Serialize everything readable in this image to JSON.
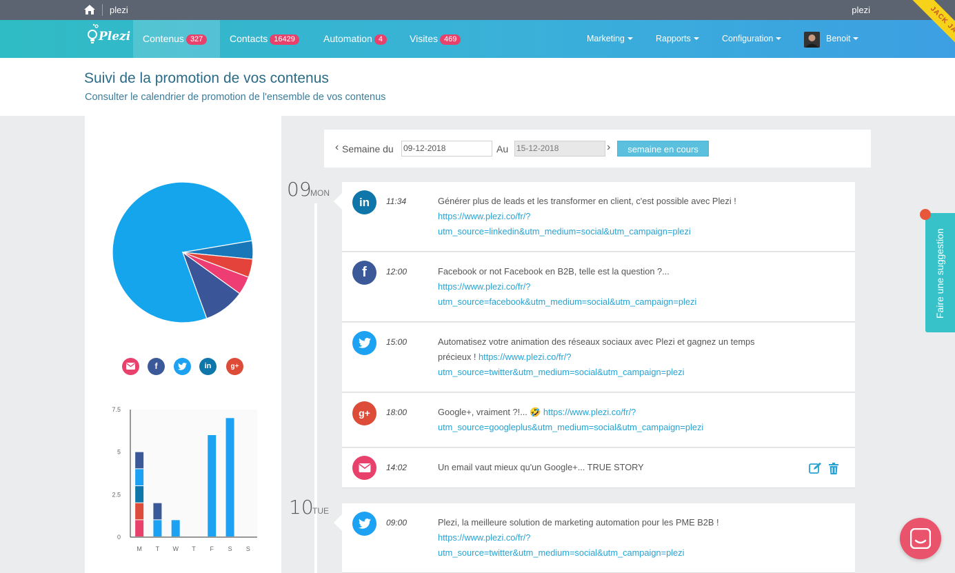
{
  "topbar": {
    "org": "plezi",
    "user": "plezi"
  },
  "navbar": {
    "logo": "Plezi",
    "items": [
      {
        "label": "Contenus",
        "badge": "327"
      },
      {
        "label": "Contacts",
        "badge": "16429"
      },
      {
        "label": "Automation",
        "badge": "4"
      },
      {
        "label": "Visites",
        "badge": "469"
      }
    ],
    "right": [
      "Marketing",
      "Rapports",
      "Configuration"
    ],
    "user": "Benoit",
    "ribbon": "JACK JACK"
  },
  "header": {
    "title": "Suivi de la promotion de vos contenus",
    "subtitle": "Consulter le calendrier de promotion de l'ensemble de vos contenus"
  },
  "colors": {
    "email": "#e8416b",
    "facebook": "#3b5998",
    "twitter": "#1da1f2",
    "linkedin": "#0e76a8",
    "googleplus": "#dd4b39",
    "pie_blue": "#14a5ec",
    "pie_dark": "#3b5599",
    "pie_mid": "#1877b8",
    "pie_red": "#e3433a",
    "pie_pink": "#ee3d72"
  },
  "social_legend": [
    "email-icon",
    "facebook-icon",
    "twitter-icon",
    "linkedin-icon",
    "googleplus-icon"
  ],
  "chart_data": [
    {
      "type": "pie",
      "title": "",
      "slices": [
        {
          "name": "twitter",
          "value": 74
        },
        {
          "name": "linkedin",
          "value": 4
        },
        {
          "name": "googleplus",
          "value": 4
        },
        {
          "name": "email",
          "value": 4
        },
        {
          "name": "facebook",
          "value": 9
        }
      ]
    },
    {
      "type": "bar",
      "stacked": true,
      "categories": [
        "M",
        "T",
        "W",
        "T",
        "F",
        "S",
        "S"
      ],
      "yticks": [
        "0",
        "2.5",
        "5",
        "7.5"
      ],
      "ylim": [
        0,
        7.5
      ],
      "series": [
        {
          "name": "email",
          "values": [
            1,
            0,
            0,
            0,
            0,
            0,
            0
          ]
        },
        {
          "name": "googleplus",
          "values": [
            1,
            0,
            0,
            0,
            0,
            0,
            0
          ]
        },
        {
          "name": "linkedin",
          "values": [
            1,
            0,
            0,
            0,
            0,
            0,
            0
          ]
        },
        {
          "name": "twitter",
          "values": [
            1,
            1,
            1,
            0,
            6,
            7,
            0
          ]
        },
        {
          "name": "facebook",
          "values": [
            1,
            1,
            0,
            0,
            0,
            0,
            0
          ]
        }
      ]
    }
  ],
  "week": {
    "prev": "‹",
    "from_label": "Semaine du",
    "from": "09-12-2018",
    "to_label": "Au",
    "to": "15-12-2018",
    "next": "›",
    "current_button": "semaine en cours"
  },
  "days": [
    {
      "num": "09",
      "name": "MON"
    },
    {
      "num": "10",
      "name": "TUE"
    }
  ],
  "posts": [
    {
      "network": "linkedin",
      "time": "11:34",
      "text": "Générer plus de leads et les transformer en client, c'est possible avec Plezi !",
      "link": "https://www.plezi.co/fr/?",
      "link2": "utm_source=linkedin&utm_medium=social&utm_campaign=plezi"
    },
    {
      "network": "facebook",
      "time": "12:00",
      "text": "Facebook or not Facebook en B2B, telle est la question ?...",
      "link": "https://www.plezi.co/fr/?",
      "link2": "utm_source=facebook&utm_medium=social&utm_campaign=plezi"
    },
    {
      "network": "twitter",
      "time": "15:00",
      "text": "Automatisez votre animation des réseaux sociaux avec Plezi et gagnez un temps précieux !",
      "link": "https://www.plezi.co/fr/?",
      "link2": "utm_source=twitter&utm_medium=social&utm_campaign=plezi"
    },
    {
      "network": "googleplus",
      "time": "18:00",
      "text": "Google+, vraiment ?!... 🤣",
      "link": "https://www.plezi.co/fr/?",
      "link2": "utm_source=googleplus&utm_medium=social&utm_campaign=plezi"
    },
    {
      "network": "email",
      "time": "14:02",
      "text": "Un email vaut mieux qu'un Google+... TRUE STORY"
    },
    {
      "network": "twitter",
      "time": "09:00",
      "text": "Plezi, la meilleure solution de marketing automation pour les PME B2B !",
      "link": "https://www.plezi.co/fr/?",
      "link2": "utm_source=twitter&utm_medium=social&utm_campaign=plezi"
    }
  ],
  "suggest": "Faire une suggestion"
}
